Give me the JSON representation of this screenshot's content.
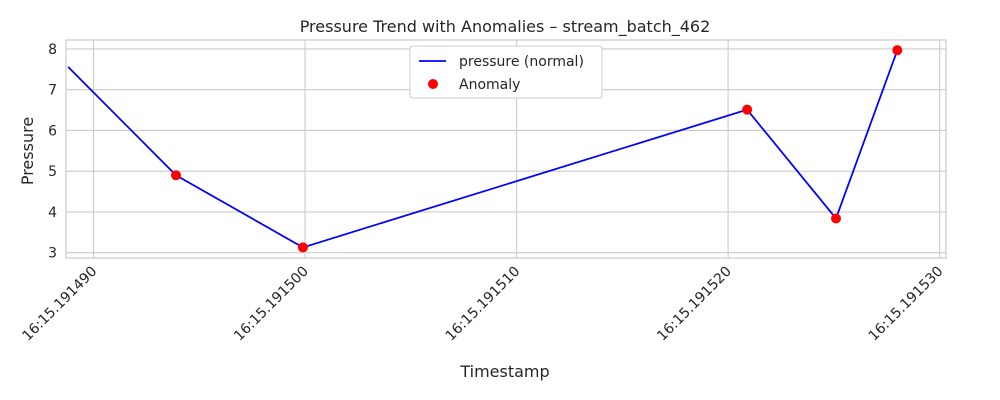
{
  "chart_data": {
    "type": "line",
    "title": "Pressure Trend with Anomalies – stream_batch_462",
    "xlabel": "Timestamp",
    "ylabel": "Pressure",
    "x_tick_labels": [
      "16:15.191490",
      "16:15.191500",
      "16:15.191510",
      "16:15.191520",
      "16:15.191530"
    ],
    "x_tick_values": [
      191490,
      191500,
      191510,
      191520,
      191530
    ],
    "xlim": [
      191488.7,
      191530.3
    ],
    "y_ticks": [
      3,
      4,
      5,
      6,
      7,
      8
    ],
    "ylim": [
      2.87,
      8.22
    ],
    "grid": true,
    "legend_position": "top-center",
    "series": [
      {
        "name": "pressure (normal)",
        "kind": "line",
        "color": "#0000ff",
        "x": [
          191488.8,
          191493.9,
          191499.9,
          191520.9,
          191525.1,
          191528.0
        ],
        "y": [
          7.56,
          4.9,
          3.13,
          6.51,
          3.84,
          7.97
        ]
      },
      {
        "name": "Anomaly",
        "kind": "scatter",
        "color": "#ff0000",
        "x": [
          191493.9,
          191499.9,
          191520.9,
          191525.1,
          191528.0
        ],
        "y": [
          4.9,
          3.13,
          6.51,
          3.84,
          7.97
        ]
      }
    ]
  }
}
